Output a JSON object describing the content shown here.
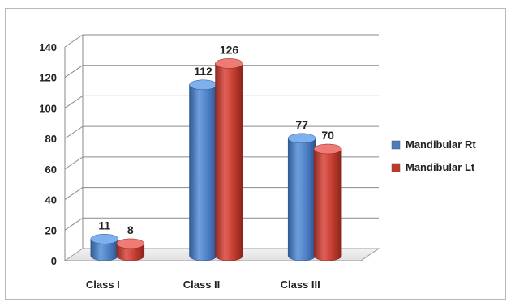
{
  "chart_data": {
    "type": "bar",
    "style": "3d-cylinder",
    "categories": [
      "Class I",
      "Class II",
      "Class III"
    ],
    "series": [
      {
        "name": "Mandibular Rt",
        "values": [
          11,
          112,
          77
        ],
        "color": "#4a7cc2"
      },
      {
        "name": "Mandibular Lt",
        "values": [
          8,
          126,
          70
        ],
        "color": "#c0392b"
      }
    ],
    "y_ticks": [
      "0",
      "20",
      "40",
      "60",
      "80",
      "100",
      "120",
      "140"
    ],
    "ylim": [
      0,
      140
    ],
    "grid": true,
    "legend_position": "right"
  }
}
